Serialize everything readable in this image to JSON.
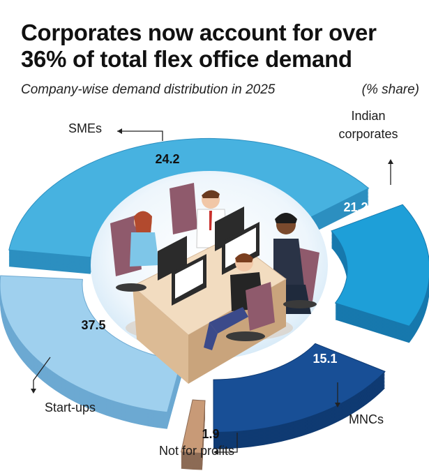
{
  "header": {
    "title_line1": "Corporates now account for over",
    "title_line2": "36% of total flex office demand",
    "subtitle": "Company-wise demand distribution in 2025",
    "unit": "(% share)"
  },
  "chart_data": {
    "type": "pie",
    "title": "Corporates now account for over 36% of total flex office demand",
    "subtitle": "Company-wise demand distribution in 2025",
    "unit": "% share",
    "categories": [
      "SMEs",
      "Indian corporates",
      "MNCs",
      "Not for profits",
      "Start-ups"
    ],
    "values": [
      24.2,
      21.2,
      15.1,
      1.9,
      37.5
    ],
    "value_labels": [
      "24.2",
      "21.2",
      "15.1",
      "1.9",
      "37.5"
    ],
    "label_lines": [
      [
        "SMEs"
      ],
      [
        "Indian",
        "corporates"
      ],
      [
        "MNCs"
      ],
      [
        "Not for profits"
      ],
      [
        "Start-ups"
      ]
    ],
    "colors": [
      "#47b2e0",
      "#1e9fd8",
      "#184f96",
      "#c89a77",
      "#9fd0ee"
    ],
    "side_colors": [
      "#2c8fc0",
      "#1778ad",
      "#0f3a72",
      "#8c6b55",
      "#6ca9d2"
    ],
    "value_colors": [
      "#111111",
      "#ffffff",
      "#ffffff",
      "#111111",
      "#111111"
    ],
    "legend": "none",
    "center_image": "office-workers-illustration"
  }
}
